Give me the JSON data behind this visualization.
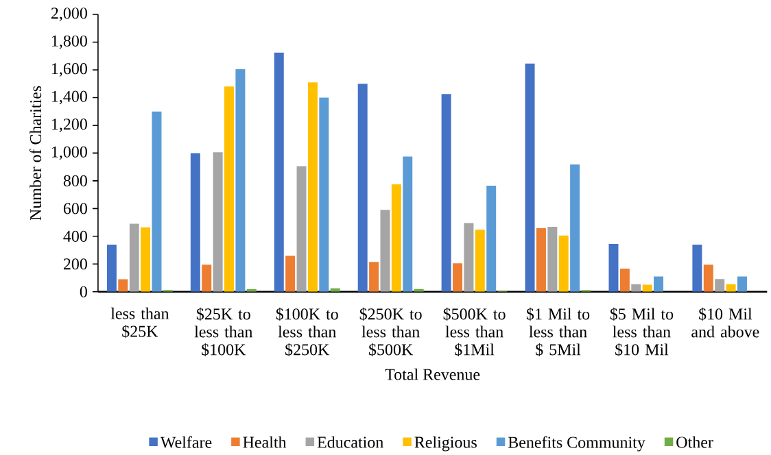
{
  "chart_data": {
    "type": "bar",
    "xlabel": "Total Revenue",
    "ylabel": "Number of Charities",
    "categories": [
      "less than $25K",
      "$25K to less than $100K",
      "$100K to less than $250K",
      "$250K to less than $500K",
      "$500K to less than $1Mil",
      "$1 Mil to less than $ 5Mil",
      "$5 Mil to less than $10 Mil",
      "$10 Mil and above"
    ],
    "series": [
      {
        "name": "Welfare",
        "color": "#4472c4",
        "values": [
          340,
          1000,
          1725,
          1500,
          1425,
          1645,
          345,
          340
        ]
      },
      {
        "name": "Health",
        "color": "#ed7d31",
        "values": [
          90,
          195,
          260,
          215,
          205,
          458,
          167,
          195
        ]
      },
      {
        "name": "Education",
        "color": "#a5a5a5",
        "values": [
          490,
          1005,
          905,
          590,
          495,
          468,
          54,
          92
        ]
      },
      {
        "name": "Religious",
        "color": "#ffc000",
        "values": [
          465,
          1480,
          1510,
          775,
          447,
          405,
          51,
          54
        ]
      },
      {
        "name": "Benefits Community",
        "color": "#5b9bd5",
        "values": [
          1300,
          1605,
          1400,
          975,
          765,
          918,
          110,
          110
        ]
      },
      {
        "name": "Other",
        "color": "#70ad47",
        "values": [
          13,
          18,
          25,
          20,
          8,
          13,
          0,
          0
        ]
      }
    ],
    "ylim": [
      0,
      2000
    ],
    "yticks": [
      {
        "value": 0,
        "label": "0"
      },
      {
        "value": 200,
        "label": "200"
      },
      {
        "value": 400,
        "label": "400"
      },
      {
        "value": 600,
        "label": "600"
      },
      {
        "value": 800,
        "label": "800"
      },
      {
        "value": 1000,
        "label": "1,000"
      },
      {
        "value": 1200,
        "label": "1,200"
      },
      {
        "value": 1400,
        "label": "1,400"
      },
      {
        "value": 1600,
        "label": "1,600"
      },
      {
        "value": 1800,
        "label": "1,800"
      },
      {
        "value": 2000,
        "label": "2,000"
      }
    ],
    "legend": "bottom"
  }
}
